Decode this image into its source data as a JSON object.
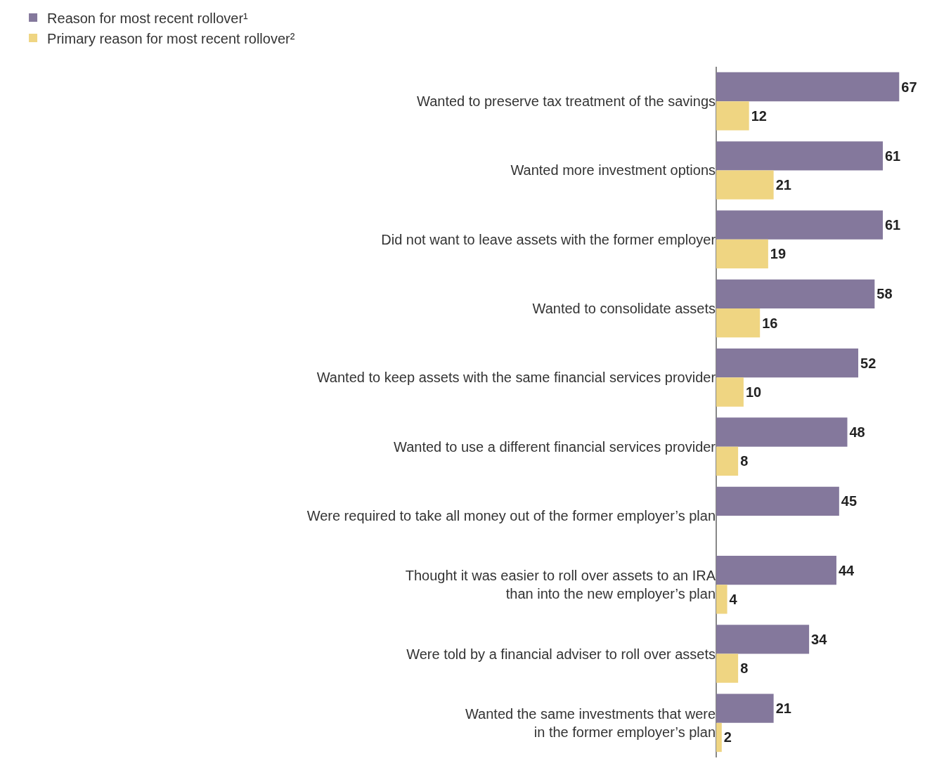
{
  "chart_data": {
    "type": "bar",
    "orientation": "horizontal",
    "data_labels": true,
    "legend": "top left",
    "categories": [
      "Wanted to preserve tax treatment of the savings",
      "Wanted more investment options",
      "Did not want to leave assets with the former employer",
      "Wanted to consolidate assets",
      "Wanted to keep assets with the same financial services provider",
      "Wanted to use a different financial services provider",
      "Were required to take all money out of the former employer’s plan",
      "Thought it was easier to roll over assets to an IRA\nthan into the new employer’s plan",
      "Were told by a financial adviser to roll over assets",
      "Wanted the same investments that were\nin the former employer’s plan"
    ],
    "series": [
      {
        "name": "Reason for most recent rollover¹",
        "color": "#84789c",
        "values": [
          67,
          61,
          61,
          58,
          52,
          48,
          45,
          44,
          34,
          21
        ]
      },
      {
        "name": "Primary reason for most recent rollover²",
        "color": "#efd582",
        "values": [
          12,
          21,
          19,
          16,
          10,
          8,
          null,
          4,
          8,
          2
        ]
      }
    ]
  }
}
